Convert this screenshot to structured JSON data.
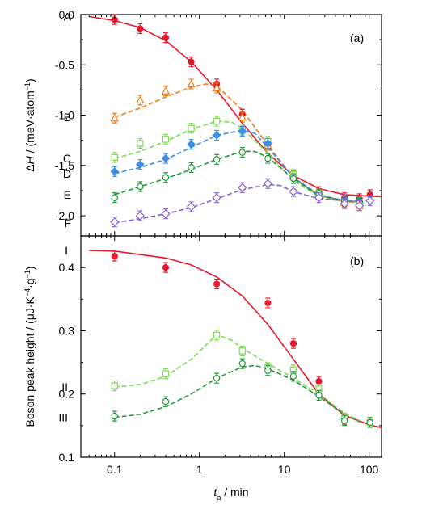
{
  "chart_data": [
    {
      "panel_label": "(a)",
      "type": "line",
      "ylabel": "ΔH / (meV·atom⁻¹)",
      "ylabel_parts": {
        "delta": "Δ",
        "symbol": "H",
        "unit": " / (meV·atom",
        "exp": "−1",
        "close": ")"
      },
      "xscale": "log",
      "xlim": [
        0.04,
        140
      ],
      "ylim": [
        -2.2,
        0.0
      ],
      "yticks": [
        "0.0",
        "-0.5",
        "-1.0",
        "-1.5",
        "-2.0"
      ],
      "ytick_values": [
        0.0,
        -0.5,
        -1.0,
        -1.5,
        -2.0
      ],
      "series": [
        {
          "name": "A",
          "color": "#e8192c",
          "marker": "circle-filled",
          "line": "solid",
          "points": [
            [
              0.1,
              -0.05
            ],
            [
              0.2,
              -0.14
            ],
            [
              0.4,
              -0.23
            ],
            [
              0.8,
              -0.47
            ],
            [
              1.6,
              -0.69
            ],
            [
              3.2,
              -0.99
            ],
            [
              6.4,
              -1.3
            ],
            [
              12.8,
              -1.6
            ],
            [
              25.6,
              -1.76
            ],
            [
              51.2,
              -1.82
            ],
            [
              76.8,
              -1.83
            ],
            [
              102.4,
              -1.79
            ]
          ],
          "curve": [
            [
              0.05,
              -0.02
            ],
            [
              0.1,
              -0.06
            ],
            [
              0.2,
              -0.13
            ],
            [
              0.4,
              -0.26
            ],
            [
              0.8,
              -0.47
            ],
            [
              1.6,
              -0.75
            ],
            [
              3.2,
              -1.08
            ],
            [
              6.4,
              -1.38
            ],
            [
              12.8,
              -1.6
            ],
            [
              25.6,
              -1.73
            ],
            [
              51.2,
              -1.79
            ],
            [
              140,
              -1.81
            ]
          ]
        },
        {
          "name": "B",
          "color": "#ef7d1a",
          "marker": "triangle-open",
          "line": "dashed",
          "points": [
            [
              0.1,
              -1.03
            ],
            [
              0.2,
              -0.85
            ],
            [
              0.4,
              -0.76
            ],
            [
              0.8,
              -0.69
            ],
            [
              1.6,
              -0.73
            ],
            [
              3.2,
              -1.02
            ],
            [
              6.4,
              -1.3
            ],
            [
              12.8,
              -1.6
            ],
            [
              25.6,
              -1.79
            ],
            [
              51.2,
              -1.87
            ],
            [
              76.8,
              -1.9
            ]
          ],
          "curve": [
            [
              0.1,
              -1.02
            ],
            [
              0.2,
              -0.93
            ],
            [
              0.4,
              -0.82
            ],
            [
              0.8,
              -0.72
            ],
            [
              1.2,
              -0.69
            ],
            [
              1.6,
              -0.71
            ],
            [
              3.2,
              -0.95
            ],
            [
              6.4,
              -1.3
            ],
            [
              12.8,
              -1.62
            ],
            [
              25.6,
              -1.8
            ],
            [
              51.2,
              -1.86
            ],
            [
              76.8,
              -1.87
            ]
          ]
        },
        {
          "name": "C",
          "color": "#7ed957",
          "marker": "square-open",
          "line": "dashed",
          "points": [
            [
              0.1,
              -1.42
            ],
            [
              0.2,
              -1.28
            ],
            [
              0.4,
              -1.24
            ],
            [
              0.8,
              -1.13
            ],
            [
              1.6,
              -1.06
            ],
            [
              3.2,
              -1.15
            ],
            [
              6.4,
              -1.26
            ],
            [
              12.8,
              -1.59
            ],
            [
              25.6,
              -1.78
            ],
            [
              51.2,
              -1.86
            ],
            [
              76.8,
              -1.87
            ]
          ],
          "curve": [
            [
              0.1,
              -1.43
            ],
            [
              0.2,
              -1.36
            ],
            [
              0.4,
              -1.26
            ],
            [
              0.8,
              -1.14
            ],
            [
              1.6,
              -1.06
            ],
            [
              2.4,
              -1.07
            ],
            [
              3.2,
              -1.13
            ],
            [
              6.4,
              -1.38
            ],
            [
              12.8,
              -1.65
            ],
            [
              25.6,
              -1.81
            ],
            [
              51.2,
              -1.86
            ],
            [
              76.8,
              -1.86
            ]
          ]
        },
        {
          "name": "D",
          "color": "#3b8ee8",
          "marker": "diamond-filled",
          "line": "dashed",
          "points": [
            [
              0.1,
              -1.56
            ],
            [
              0.2,
              -1.49
            ],
            [
              0.4,
              -1.43
            ],
            [
              0.8,
              -1.29
            ],
            [
              1.6,
              -1.2
            ],
            [
              3.2,
              -1.16
            ],
            [
              6.4,
              -1.28
            ],
            [
              12.8,
              -1.63
            ],
            [
              25.6,
              -1.78
            ],
            [
              51.2,
              -1.84
            ],
            [
              76.8,
              -1.86
            ]
          ],
          "curve": [
            [
              0.1,
              -1.58
            ],
            [
              0.2,
              -1.52
            ],
            [
              0.4,
              -1.44
            ],
            [
              0.8,
              -1.32
            ],
            [
              1.6,
              -1.2
            ],
            [
              3.2,
              -1.15
            ],
            [
              4.5,
              -1.18
            ],
            [
              6.4,
              -1.32
            ],
            [
              12.8,
              -1.62
            ],
            [
              25.6,
              -1.79
            ],
            [
              51.2,
              -1.85
            ],
            [
              76.8,
              -1.86
            ]
          ]
        },
        {
          "name": "E",
          "color": "#1f9a3c",
          "marker": "circle-open",
          "line": "dashed",
          "points": [
            [
              0.1,
              -1.82
            ],
            [
              0.2,
              -1.71
            ],
            [
              0.4,
              -1.62
            ],
            [
              0.8,
              -1.52
            ],
            [
              1.6,
              -1.44
            ],
            [
              3.2,
              -1.37
            ],
            [
              6.4,
              -1.43
            ],
            [
              12.8,
              -1.63
            ],
            [
              25.6,
              -1.78
            ],
            [
              51.2,
              -1.86
            ],
            [
              76.8,
              -1.87
            ]
          ],
          "curve": [
            [
              0.1,
              -1.79
            ],
            [
              0.2,
              -1.71
            ],
            [
              0.4,
              -1.63
            ],
            [
              0.8,
              -1.54
            ],
            [
              1.6,
              -1.44
            ],
            [
              3.2,
              -1.36
            ],
            [
              4.5,
              -1.36
            ],
            [
              6.4,
              -1.42
            ],
            [
              12.8,
              -1.63
            ],
            [
              25.6,
              -1.8
            ],
            [
              51.2,
              -1.85
            ],
            [
              76.8,
              -1.86
            ]
          ]
        },
        {
          "name": "F",
          "color": "#8a63d2",
          "marker": "diamond-open",
          "line": "dashed",
          "points": [
            [
              0.1,
              -2.06
            ],
            [
              0.2,
              -2.0
            ],
            [
              0.4,
              -1.98
            ],
            [
              0.8,
              -1.91
            ],
            [
              1.6,
              -1.82
            ],
            [
              3.2,
              -1.72
            ],
            [
              6.4,
              -1.68
            ],
            [
              12.8,
              -1.76
            ],
            [
              25.6,
              -1.82
            ],
            [
              51.2,
              -1.88
            ],
            [
              76.8,
              -1.9
            ],
            [
              102.4,
              -1.85
            ]
          ],
          "curve": [
            [
              0.1,
              -2.07
            ],
            [
              0.2,
              -2.03
            ],
            [
              0.4,
              -1.98
            ],
            [
              0.8,
              -1.92
            ],
            [
              1.6,
              -1.83
            ],
            [
              3.2,
              -1.74
            ],
            [
              6.4,
              -1.69
            ],
            [
              9.0,
              -1.7
            ],
            [
              12.8,
              -1.76
            ],
            [
              25.6,
              -1.83
            ],
            [
              51.2,
              -1.85
            ],
            [
              76.8,
              -1.85
            ]
          ]
        }
      ]
    },
    {
      "panel_label": "(b)",
      "type": "line",
      "ylabel": "Boson peak height / (μJ·K⁻⁴·g⁻¹)",
      "ylabel_parts": {
        "text": "Boson peak height / (μJ·K",
        "exp1": "−4",
        "mid": "·g",
        "exp2": "−1",
        "close": ")"
      },
      "xlabel": "t_a / min",
      "xlabel_parts": {
        "symbol": "t",
        "sub": "a",
        "unit": " / min"
      },
      "xscale": "log",
      "xlim": [
        0.04,
        140
      ],
      "ylim": [
        0.1,
        0.45
      ],
      "xticks": [
        "0.1",
        "1",
        "10",
        "100"
      ],
      "xtick_values": [
        0.1,
        1,
        10,
        100
      ],
      "yticks": [
        "0.1",
        "0.2",
        "0.3",
        "0.4"
      ],
      "ytick_values": [
        0.1,
        0.2,
        0.3,
        0.4
      ],
      "series": [
        {
          "name": "I",
          "color": "#e8192c",
          "marker": "circle-filled",
          "line": "solid",
          "points": [
            [
              0.1,
              0.418
            ],
            [
              0.4,
              0.4
            ],
            [
              1.6,
              0.374
            ],
            [
              6.4,
              0.344
            ],
            [
              12.8,
              0.28
            ],
            [
              25.6,
              0.22
            ],
            [
              51.2,
              0.16
            ],
            [
              102.4,
              0.155
            ]
          ],
          "curve": [
            [
              0.05,
              0.427
            ],
            [
              0.1,
              0.426
            ],
            [
              0.4,
              0.415
            ],
            [
              0.8,
              0.404
            ],
            [
              1.6,
              0.385
            ],
            [
              3.2,
              0.355
            ],
            [
              6.4,
              0.31
            ],
            [
              12.8,
              0.255
            ],
            [
              25.6,
              0.2
            ],
            [
              51.2,
              0.166
            ],
            [
              102.4,
              0.151
            ],
            [
              140,
              0.147
            ]
          ]
        },
        {
          "name": "II",
          "color": "#7ed957",
          "marker": "square-open",
          "line": "dashed",
          "points": [
            [
              0.1,
              0.213
            ],
            [
              0.4,
              0.232
            ],
            [
              1.6,
              0.293
            ],
            [
              3.2,
              0.268
            ],
            [
              6.4,
              0.242
            ],
            [
              12.8,
              0.238
            ],
            [
              25.6,
              0.208
            ],
            [
              51.2,
              0.162
            ],
            [
              102.4,
              0.155
            ]
          ],
          "curve": [
            [
              0.1,
              0.211
            ],
            [
              0.2,
              0.215
            ],
            [
              0.4,
              0.228
            ],
            [
              0.8,
              0.255
            ],
            [
              1.6,
              0.294
            ],
            [
              2.4,
              0.285
            ],
            [
              3.2,
              0.272
            ],
            [
              6.4,
              0.248
            ],
            [
              12.8,
              0.225
            ],
            [
              25.6,
              0.2
            ],
            [
              51.2,
              0.17
            ],
            [
              76.8,
              0.158
            ]
          ]
        },
        {
          "name": "III",
          "color": "#1f9a3c",
          "marker": "circle-open",
          "line": "dashed",
          "points": [
            [
              0.1,
              0.165
            ],
            [
              0.4,
              0.188
            ],
            [
              1.6,
              0.225
            ],
            [
              3.2,
              0.248
            ],
            [
              6.4,
              0.237
            ],
            [
              12.8,
              0.228
            ],
            [
              25.6,
              0.198
            ],
            [
              51.2,
              0.158
            ],
            [
              102.4,
              0.155
            ]
          ],
          "curve": [
            [
              0.1,
              0.163
            ],
            [
              0.2,
              0.168
            ],
            [
              0.4,
              0.18
            ],
            [
              0.8,
              0.2
            ],
            [
              1.6,
              0.225
            ],
            [
              3.2,
              0.243
            ],
            [
              4.5,
              0.245
            ],
            [
              6.4,
              0.24
            ],
            [
              12.8,
              0.222
            ],
            [
              25.6,
              0.196
            ],
            [
              51.2,
              0.168
            ],
            [
              76.8,
              0.156
            ]
          ]
        }
      ]
    }
  ]
}
